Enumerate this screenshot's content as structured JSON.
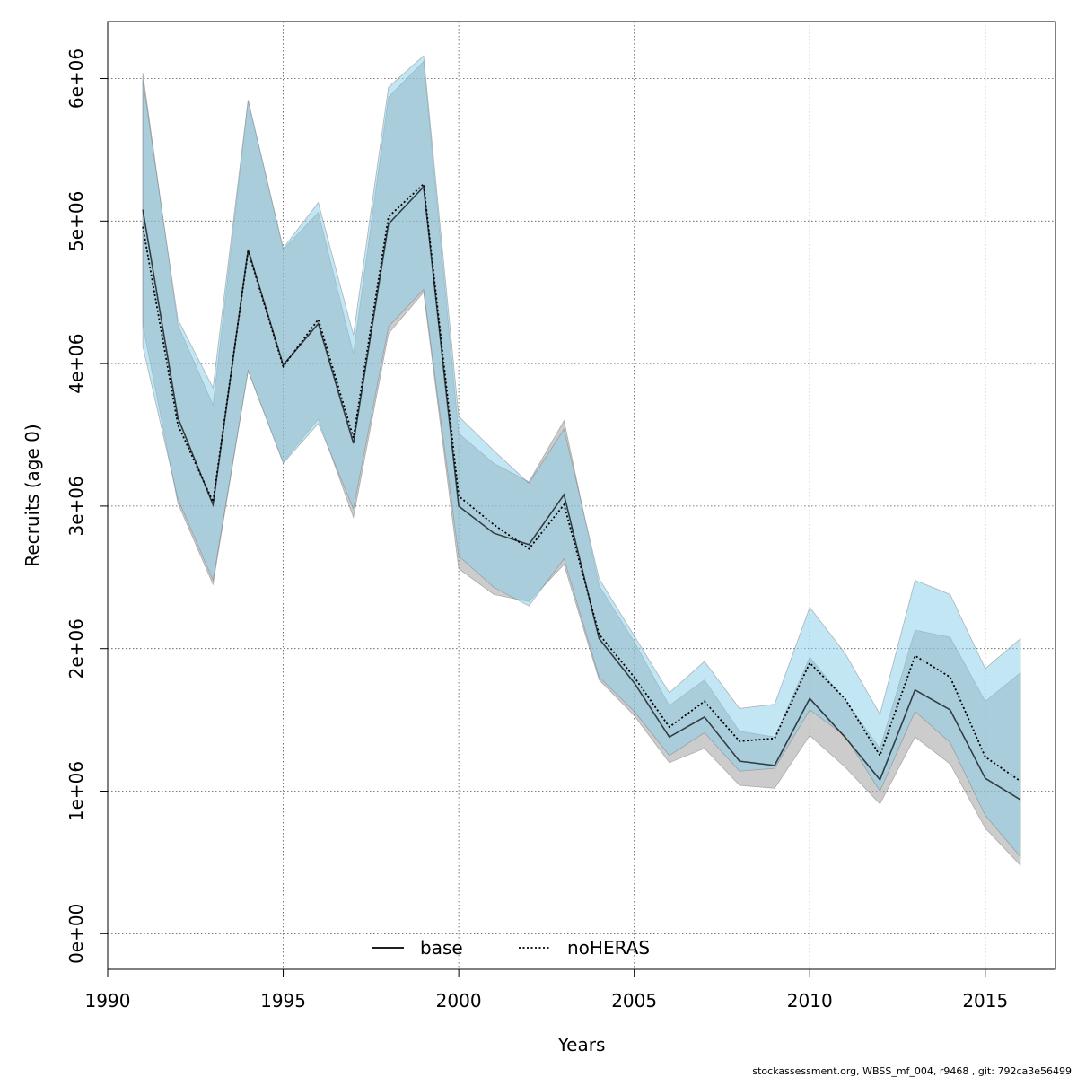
{
  "chart_data": {
    "type": "line",
    "title": "",
    "xlabel": "Years",
    "ylabel": "Recruits (age 0)",
    "xlim": [
      1990,
      2017
    ],
    "ylim": [
      -250000,
      6400000
    ],
    "x_ticks": [
      1990,
      1995,
      2000,
      2005,
      2010,
      2015
    ],
    "x_tick_labels": [
      "1990",
      "1995",
      "2000",
      "2005",
      "2010",
      "2015"
    ],
    "y_ticks": [
      0,
      1000000,
      2000000,
      3000000,
      4000000,
      5000000,
      6000000
    ],
    "y_tick_labels": [
      "0e+00",
      "1e+06",
      "2e+06",
      "3e+06",
      "4e+06",
      "5e+06",
      "6e+06"
    ],
    "grid": true,
    "legend_position": "bottom",
    "x": [
      1991,
      1992,
      1993,
      1994,
      1995,
      1996,
      1997,
      1998,
      1999,
      2000,
      2001,
      2002,
      2003,
      2004,
      2005,
      2006,
      2007,
      2008,
      2009,
      2010,
      2011,
      2012,
      2013,
      2014,
      2015,
      2016
    ],
    "series": [
      {
        "name": "base",
        "line_style": "solid",
        "line_color": "#000000",
        "band_color": "#999999",
        "values": [
          5080000,
          3620000,
          3010000,
          4800000,
          3990000,
          4280000,
          3440000,
          4980000,
          5240000,
          3000000,
          2810000,
          2730000,
          3080000,
          2070000,
          1760000,
          1380000,
          1520000,
          1210000,
          1180000,
          1650000,
          1380000,
          1080000,
          1710000,
          1570000,
          1090000,
          940000
        ],
        "lower": [
          4270000,
          3020000,
          2450000,
          3950000,
          3310000,
          3610000,
          2920000,
          4210000,
          4500000,
          2560000,
          2380000,
          2330000,
          2590000,
          1780000,
          1530000,
          1200000,
          1300000,
          1040000,
          1020000,
          1390000,
          1170000,
          910000,
          1380000,
          1190000,
          740000,
          480000
        ],
        "upper": [
          6040000,
          4270000,
          3710000,
          5840000,
          4800000,
          5060000,
          4070000,
          5870000,
          6120000,
          3510000,
          3300000,
          3170000,
          3600000,
          2440000,
          2050000,
          1600000,
          1780000,
          1420000,
          1380000,
          1940000,
          1640000,
          1300000,
          2130000,
          2080000,
          1630000,
          1830000
        ]
      },
      {
        "name": "noHERAS",
        "line_style": "dotted",
        "line_color": "#000000",
        "band_color": "#87ceeb",
        "values": [
          4960000,
          3570000,
          3030000,
          4790000,
          3980000,
          4310000,
          3480000,
          5030000,
          5260000,
          3070000,
          2870000,
          2700000,
          3010000,
          2100000,
          1800000,
          1450000,
          1630000,
          1350000,
          1370000,
          1900000,
          1650000,
          1250000,
          1950000,
          1800000,
          1240000,
          1070000
        ],
        "lower": [
          4120000,
          3050000,
          2480000,
          3950000,
          3300000,
          3580000,
          2980000,
          4260000,
          4520000,
          2650000,
          2430000,
          2300000,
          2630000,
          1800000,
          1560000,
          1250000,
          1410000,
          1140000,
          1160000,
          1570000,
          1390000,
          1000000,
          1560000,
          1340000,
          830000,
          540000
        ],
        "upper": [
          5990000,
          4310000,
          3830000,
          5850000,
          4810000,
          5130000,
          4200000,
          5940000,
          6160000,
          3630000,
          3390000,
          3160000,
          3540000,
          2490000,
          2090000,
          1690000,
          1910000,
          1580000,
          1610000,
          2290000,
          1970000,
          1540000,
          2480000,
          2380000,
          1860000,
          2070000
        ]
      }
    ]
  },
  "footer": {
    "text": "stockassessment.org, WBSS_mf_004, r9468 , git: 792ca3e56499"
  }
}
